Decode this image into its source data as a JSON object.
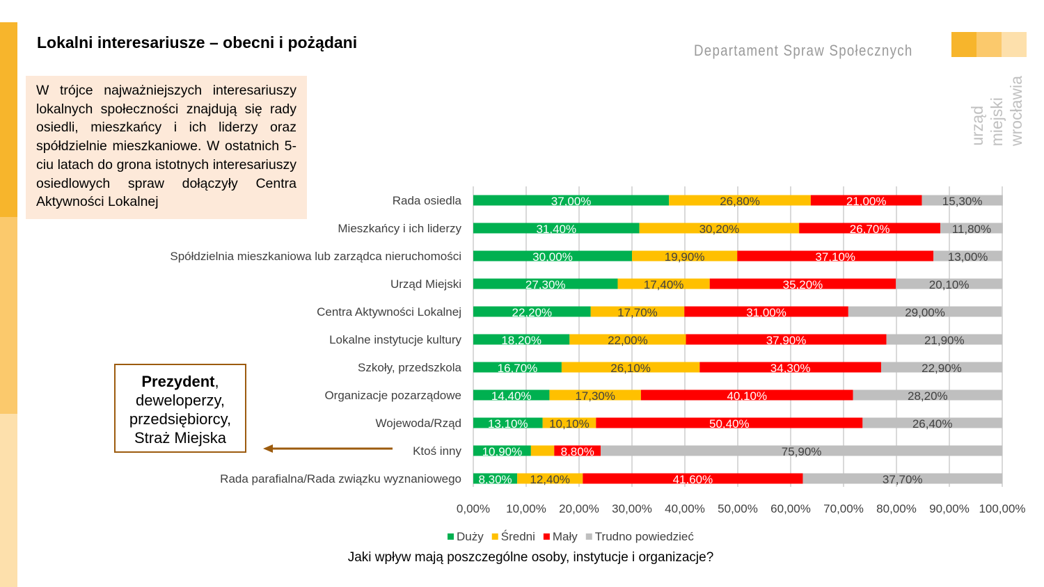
{
  "slide": {
    "title": "Lokalni interesariusze – obecni i pożądani",
    "note": "W trójce najważniejszych interesariuszy lokalnych społeczności znajdują się rady osiedli, mieszkańcy i ich liderzy oraz spółdzielnie mieszkaniowe. W ostatnich 5-ciu latach do grona istotnych interesariuszy osiedlowych spraw dołączyły Centra Aktywności Lokalnej",
    "callout_bold": "Prezydent",
    "callout_rest": ", deweloperzy, przedsiębiorcy, Straż Miejska",
    "question": "Jaki wpływ mają poszczególne osoby, instytucje i organizacje?",
    "stripe_colors": [
      "#F7B52C",
      "#FBC96C",
      "#FDE0AC"
    ]
  },
  "logo": {
    "department": "Departament Spraw Społecznych",
    "lines": [
      "urząd",
      "miejski",
      "wrocławia"
    ]
  },
  "chart_data": {
    "type": "bar",
    "orientation": "horizontal",
    "stacked": true,
    "xlim": [
      0,
      100
    ],
    "grid": true,
    "legend": "bottom",
    "categories": [
      "Rada osiedla",
      "Mieszkańcy i ich liderzy",
      "Spółdzielnia mieszkaniowa lub zarządca nieruchomości",
      "Urząd Miejski",
      "Centra Aktywności Lokalnej",
      "Lokalne instytucje kultury",
      "Szkoły, przedszkola",
      "Organizacje pozarządowe",
      "Wojewoda/Rząd",
      "Ktoś inny",
      "Rada parafialna/Rada związku wyznaniowego"
    ],
    "x_ticks": [
      "0,00%",
      "10,00%",
      "20,00%",
      "30,00%",
      "40,00%",
      "50,00%",
      "60,00%",
      "70,00%",
      "80,00%",
      "90,00%",
      "100,00%"
    ],
    "series": [
      {
        "name": "Duży",
        "color": "#00B050",
        "label_color": "#ffffff",
        "values": [
          37.0,
          31.4,
          30.0,
          27.3,
          22.2,
          18.2,
          16.7,
          14.4,
          13.1,
          10.9,
          8.3
        ],
        "labels": [
          "37,00%",
          "31,40%",
          "30,00%",
          "27,30%",
          "22,20%",
          "18,20%",
          "16,70%",
          "14,40%",
          "13,10%",
          "10,90%",
          "8,30%"
        ]
      },
      {
        "name": "Średni",
        "color": "#FFC000",
        "label_color": "#404040",
        "values": [
          26.8,
          30.2,
          19.9,
          17.4,
          17.7,
          22.0,
          26.1,
          17.3,
          10.1,
          4.4,
          12.4
        ],
        "labels": [
          "26,80%",
          "30,20%",
          "19,90%",
          "17,40%",
          "17,70%",
          "22,00%",
          "26,10%",
          "17,30%",
          "10,10%",
          "",
          "12,40%"
        ]
      },
      {
        "name": "Mały",
        "color": "#FF0000",
        "label_color": "#ffffff",
        "values": [
          21.0,
          26.7,
          37.1,
          35.2,
          31.0,
          37.9,
          34.3,
          40.1,
          50.4,
          8.8,
          41.6
        ],
        "labels": [
          "21,00%",
          "26,70%",
          "37,10%",
          "35,20%",
          "31,00%",
          "37,90%",
          "34,30%",
          "40,10%",
          "50,40%",
          "8,80%",
          "41,60%"
        ]
      },
      {
        "name": "Trudno powiedzieć",
        "color": "#BFBFBF",
        "label_color": "#404040",
        "values": [
          15.3,
          11.8,
          13.0,
          20.1,
          29.0,
          21.9,
          22.9,
          28.2,
          26.4,
          75.9,
          37.7
        ],
        "labels": [
          "15,30%",
          "11,80%",
          "13,00%",
          "20,10%",
          "29,00%",
          "21,90%",
          "22,90%",
          "28,20%",
          "26,40%",
          "75,90%",
          "37,70%"
        ]
      }
    ]
  }
}
